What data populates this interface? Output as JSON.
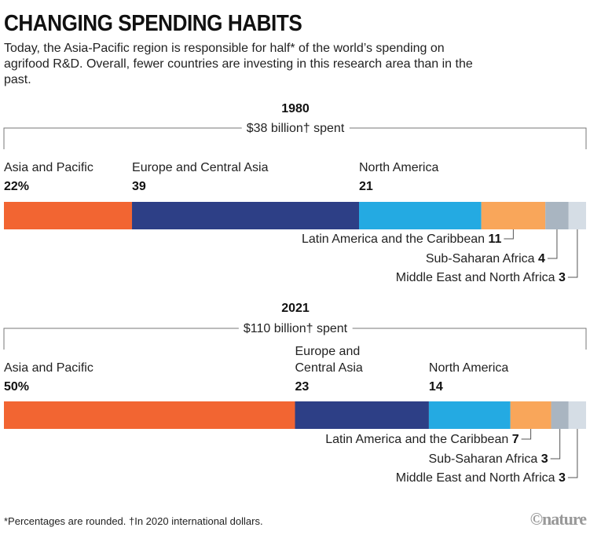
{
  "title": "CHANGING SPENDING HABITS",
  "subtitle": "Today, the Asia-Pacific region is responsible for half* of the world’s spending on agrifood R&D. Overall, fewer countries are investing in this research area than in the past.",
  "footnote": "*Percentages are rounded. †In 2020 international dollars.",
  "logo": "©nature",
  "chart_data": {
    "type": "bar",
    "stacked": true,
    "orientation": "horizontal",
    "unit": "%",
    "categories": [
      "Asia and Pacific",
      "Europe and Central Asia",
      "North America",
      "Latin America and the Caribbean",
      "Sub-Saharan Africa",
      "Middle East and North Africa"
    ],
    "colors": [
      "#f26532",
      "#2d3f86",
      "#24aae2",
      "#f9a65a",
      "#a9b5c1",
      "#d5dde5"
    ],
    "bars": [
      {
        "year": "1980",
        "total": "$38 billion† spent",
        "values": [
          22,
          39,
          21,
          11,
          4,
          3
        ],
        "value_labels": [
          "22%",
          "39",
          "21",
          "11",
          "4",
          "3"
        ]
      },
      {
        "year": "2021",
        "total": "$110 billion† spent",
        "values": [
          50,
          23,
          14,
          7,
          3,
          3
        ],
        "value_labels": [
          "50%",
          "23",
          "14",
          "7",
          "3",
          "3"
        ]
      }
    ]
  }
}
